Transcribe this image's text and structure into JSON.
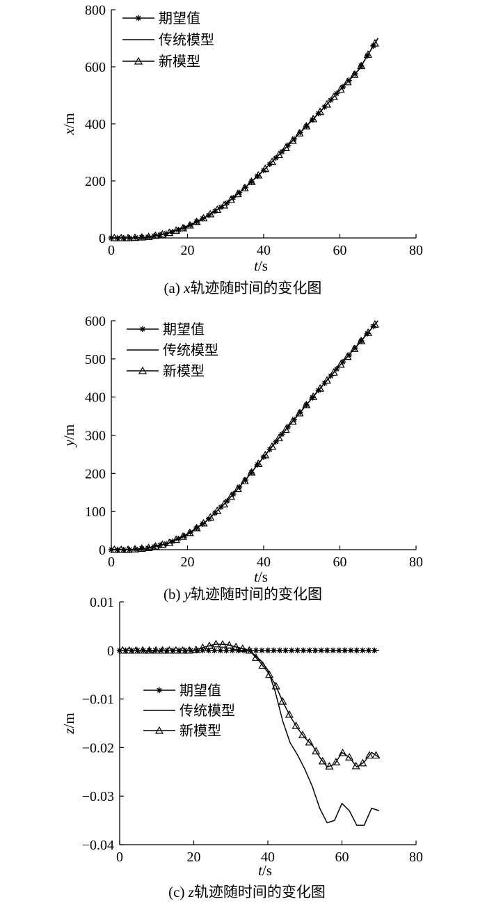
{
  "legend": {
    "expected": "期望值",
    "traditional": "传统模型",
    "new": "新模型"
  },
  "chart_data": [
    {
      "type": "line",
      "caption_prefix": "(a) ",
      "caption_var": "x",
      "caption_suffix": "轨迹随时间的变化图",
      "xlabel_var": "t",
      "xlabel_unit": "/s",
      "ylabel_var": "x",
      "ylabel_unit": "/m",
      "xlim": [
        0,
        80
      ],
      "ylim": [
        0,
        800
      ],
      "xticks": [
        0,
        20,
        40,
        60,
        80
      ],
      "yticks": [
        0,
        200,
        400,
        600,
        800
      ],
      "ytick_labels": [
        "0",
        "200",
        "400",
        "600",
        "800"
      ],
      "legend_position": "top-left",
      "grid": false,
      "series": [
        {
          "name": "期望值",
          "marker": "asterisk",
          "x": [
            0,
            5,
            10,
            15,
            20,
            25,
            30,
            35,
            40,
            45,
            50,
            55,
            60,
            65,
            70
          ],
          "y": [
            0,
            0,
            4,
            17,
            40,
            75,
            118,
            175,
            237,
            305,
            375,
            445,
            518,
            590,
            700
          ]
        },
        {
          "name": "传统模型",
          "marker": "none",
          "x": [
            0,
            5,
            10,
            15,
            20,
            25,
            30,
            35,
            40,
            45,
            50,
            55,
            60,
            65,
            70
          ],
          "y": [
            0,
            0,
            4,
            17,
            40,
            75,
            118,
            175,
            237,
            305,
            375,
            445,
            518,
            590,
            700
          ]
        },
        {
          "name": "新模型",
          "marker": "triangle",
          "x": [
            0,
            5,
            10,
            15,
            20,
            25,
            30,
            35,
            40,
            45,
            50,
            55,
            60,
            65,
            70
          ],
          "y": [
            0,
            0,
            4,
            17,
            40,
            75,
            118,
            175,
            237,
            305,
            375,
            445,
            518,
            590,
            700
          ]
        }
      ]
    },
    {
      "type": "line",
      "caption_prefix": "(b) ",
      "caption_var": "y",
      "caption_suffix": "轨迹随时间的变化图",
      "xlabel_var": "t",
      "xlabel_unit": "/s",
      "ylabel_var": "y",
      "ylabel_unit": "/m",
      "xlim": [
        0,
        80
      ],
      "ylim": [
        0,
        600
      ],
      "xticks": [
        0,
        20,
        40,
        60,
        80
      ],
      "yticks": [
        0,
        100,
        200,
        300,
        400,
        500,
        600
      ],
      "ytick_labels": [
        "0",
        "100",
        "200",
        "300",
        "400",
        "500",
        "600"
      ],
      "legend_position": "top-left",
      "grid": false,
      "series": [
        {
          "name": "期望值",
          "marker": "asterisk",
          "x": [
            0,
            5,
            10,
            15,
            20,
            25,
            30,
            35,
            40,
            45,
            50,
            55,
            60,
            65,
            70
          ],
          "y": [
            0,
            0,
            5,
            17,
            40,
            75,
            123,
            180,
            243,
            305,
            365,
            425,
            483,
            540,
            600
          ]
        },
        {
          "name": "传统模型",
          "marker": "none",
          "x": [
            0,
            5,
            10,
            15,
            20,
            25,
            30,
            35,
            40,
            45,
            50,
            55,
            60,
            65,
            70
          ],
          "y": [
            0,
            0,
            5,
            17,
            40,
            75,
            123,
            180,
            243,
            305,
            365,
            425,
            483,
            540,
            600
          ]
        },
        {
          "name": "新模型",
          "marker": "triangle",
          "x": [
            0,
            5,
            10,
            15,
            20,
            25,
            30,
            35,
            40,
            45,
            50,
            55,
            60,
            65,
            70
          ],
          "y": [
            0,
            0,
            5,
            17,
            40,
            75,
            123,
            180,
            243,
            305,
            365,
            425,
            483,
            540,
            600
          ]
        }
      ]
    },
    {
      "type": "line",
      "caption_prefix": "(c) ",
      "caption_var": "z",
      "caption_suffix": "轨迹随时间的变化图",
      "xlabel_var": "t",
      "xlabel_unit": "/s",
      "ylabel_var": "z",
      "ylabel_unit": "/m",
      "xlim": [
        0,
        80
      ],
      "ylim": [
        -0.04,
        0.01
      ],
      "xticks": [
        0,
        20,
        40,
        60,
        80
      ],
      "yticks": [
        -0.04,
        -0.03,
        -0.02,
        -0.01,
        0,
        0.01
      ],
      "ytick_labels": [
        "−0.04",
        "−0.03",
        "−0.02",
        "−0.01",
        "0",
        "0.01"
      ],
      "legend_position": "center-left",
      "grid": false,
      "series": [
        {
          "name": "期望值",
          "marker": "asterisk",
          "x": [
            0,
            70
          ],
          "y": [
            0,
            0
          ]
        },
        {
          "name": "传统模型",
          "marker": "none",
          "x": [
            0,
            20,
            23,
            26,
            29,
            32,
            35,
            38,
            40,
            42,
            44,
            46,
            48,
            50,
            52,
            54,
            56,
            58,
            60,
            62,
            64,
            66,
            68,
            70
          ],
          "y": [
            0,
            0,
            0.0007,
            0.0013,
            0.0012,
            0.0006,
            0,
            -0.002,
            -0.004,
            -0.0085,
            -0.0145,
            -0.019,
            -0.0215,
            -0.0245,
            -0.028,
            -0.0325,
            -0.0355,
            -0.035,
            -0.0315,
            -0.033,
            -0.036,
            -0.036,
            -0.0325,
            -0.033
          ]
        },
        {
          "name": "新模型",
          "marker": "triangle",
          "x": [
            0,
            20,
            23,
            26,
            29,
            32,
            35,
            38,
            40,
            42,
            44,
            46,
            48,
            50,
            52,
            54,
            56,
            58,
            60,
            62,
            64,
            66,
            68,
            70
          ],
          "y": [
            0,
            0,
            0.0007,
            0.0013,
            0.0012,
            0.0006,
            0,
            -0.0025,
            -0.0045,
            -0.007,
            -0.0105,
            -0.0135,
            -0.016,
            -0.018,
            -0.0195,
            -0.022,
            -0.024,
            -0.0235,
            -0.021,
            -0.022,
            -0.024,
            -0.023,
            -0.021,
            -0.022
          ]
        }
      ]
    }
  ]
}
